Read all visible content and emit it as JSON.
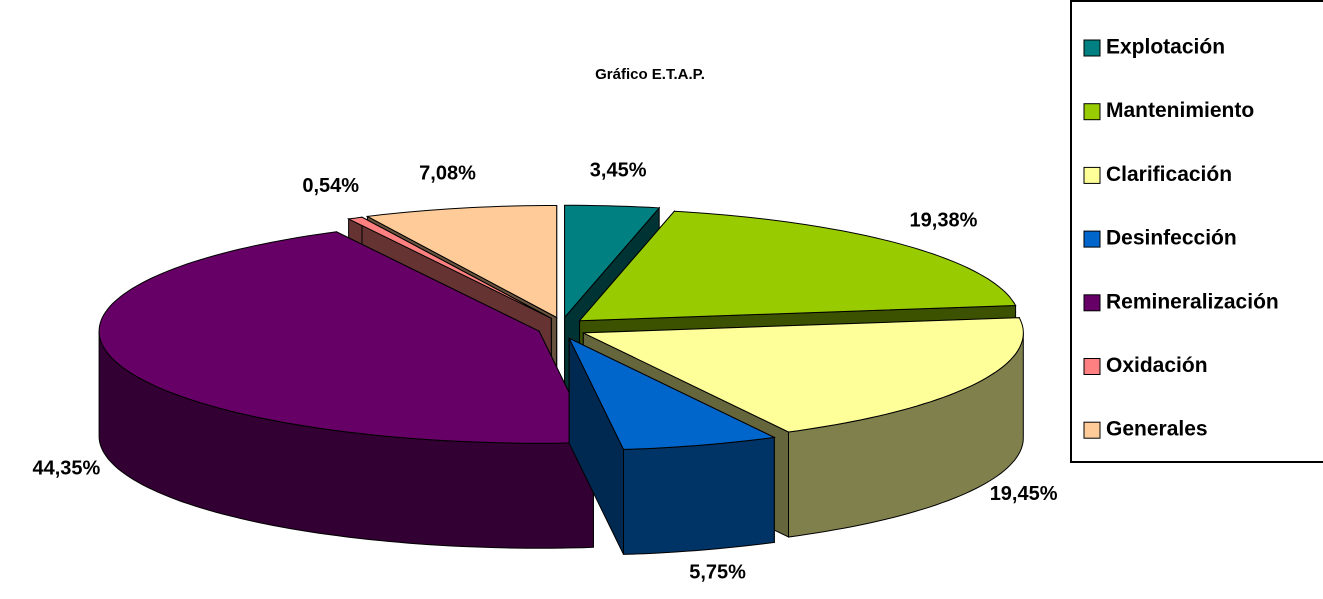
{
  "chart_data": {
    "type": "pie",
    "title": "Gráfico E.T.A.P.",
    "categories": [
      "Explotación",
      "Mantenimiento",
      "Clarificación",
      "Desinfección",
      "Remineralización",
      "Oxidación",
      "Generales"
    ],
    "values": [
      3.45,
      19.38,
      19.45,
      5.75,
      44.35,
      0.54,
      7.08
    ],
    "value_labels": [
      "3,45%",
      "19,38%",
      "19,45%",
      "5,75%",
      "44,35%",
      "0,54%",
      "7,08%"
    ],
    "colors": [
      "#008080",
      "#99cc00",
      "#ffff99",
      "#0066cc",
      "#660066",
      "#ff8080",
      "#ffcc99"
    ],
    "legend": "right"
  }
}
